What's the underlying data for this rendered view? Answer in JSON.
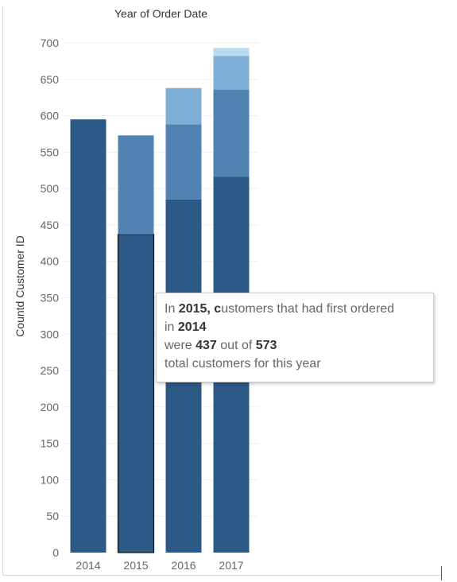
{
  "chart_data": {
    "type": "bar",
    "stacked": true,
    "title": "Year of Order Date",
    "xlabel": "",
    "ylabel": "Countd Customer ID",
    "ylim": [
      0,
      700
    ],
    "yticks": [
      0,
      50,
      100,
      150,
      200,
      250,
      300,
      350,
      400,
      450,
      500,
      550,
      600,
      650,
      700
    ],
    "categories": [
      "2014",
      "2015",
      "2016",
      "2017"
    ],
    "series": [
      {
        "color": "#2c5986",
        "values": [
          595,
          437,
          485,
          516
        ]
      },
      {
        "color": "#5082b2",
        "values": [
          0,
          136,
          103,
          120
        ]
      },
      {
        "color": "#7eafd6",
        "values": [
          0,
          0,
          50,
          46
        ]
      },
      {
        "color": "#b7dbf1",
        "values": [
          0,
          0,
          0,
          11
        ]
      }
    ],
    "highlight": {
      "category": "2015",
      "series_index": 0
    },
    "grid": true,
    "legend": "none"
  },
  "tooltip": {
    "l1a": "In ",
    "l1b": "2015, c",
    "l1c": "ustomers that had first ordered",
    "l2a": "in ",
    "l2b": "2014",
    "l3a": "were ",
    "l3b": "437",
    "l3c": " out of ",
    "l3d": "573",
    "l4": "total customers for this year"
  }
}
